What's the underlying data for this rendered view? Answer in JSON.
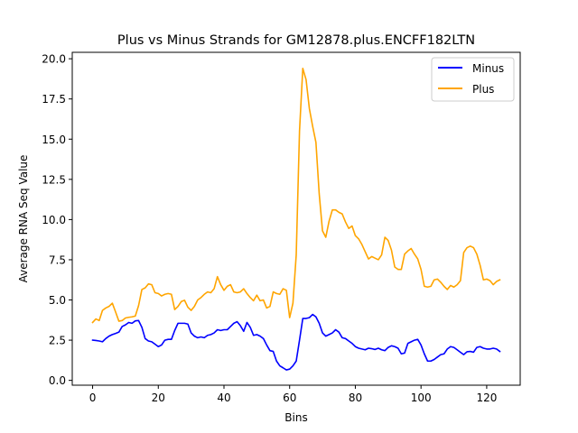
{
  "chart_data": {
    "type": "line",
    "title": "Plus vs Minus Strands for GM12878.plus.ENCFF182LTN",
    "xlabel": "Bins",
    "ylabel": "Average RNA Seq Value",
    "xlim": [
      -6.2,
      130.2
    ],
    "ylim": [
      -0.3,
      20.4
    ],
    "xticks": [
      0,
      20,
      40,
      60,
      80,
      100,
      120
    ],
    "yticks": [
      0.0,
      2.5,
      5.0,
      7.5,
      10.0,
      12.5,
      15.0,
      17.5,
      20.0
    ],
    "xtick_labels": [
      "0",
      "20",
      "40",
      "60",
      "80",
      "100",
      "120"
    ],
    "ytick_labels": [
      "0.0",
      "2.5",
      "5.0",
      "7.5",
      "10.0",
      "12.5",
      "15.0",
      "17.5",
      "20.0"
    ],
    "grid": false,
    "legend_position": "top-right",
    "series": [
      {
        "name": "Minus",
        "color": "#0000ff",
        "values": [
          2.5,
          2.48,
          2.45,
          2.4,
          2.6,
          2.75,
          2.85,
          2.92,
          3.0,
          3.35,
          3.45,
          3.6,
          3.55,
          3.7,
          3.72,
          3.3,
          2.6,
          2.45,
          2.4,
          2.25,
          2.1,
          2.2,
          2.5,
          2.55,
          2.55,
          3.1,
          3.55,
          3.55,
          3.55,
          3.5,
          2.95,
          2.75,
          2.65,
          2.7,
          2.65,
          2.8,
          2.85,
          2.95,
          3.15,
          3.1,
          3.15,
          3.15,
          3.35,
          3.55,
          3.65,
          3.4,
          3.05,
          3.6,
          3.3,
          2.8,
          2.85,
          2.75,
          2.6,
          2.2,
          1.85,
          1.8,
          1.2,
          0.9,
          0.78,
          0.65,
          0.7,
          0.9,
          1.2,
          2.5,
          3.85,
          3.85,
          3.9,
          4.1,
          3.95,
          3.55,
          2.95,
          2.75,
          2.85,
          2.95,
          3.15,
          3.0,
          2.65,
          2.6,
          2.45,
          2.3,
          2.1,
          2.0,
          1.95,
          1.9,
          2.0,
          1.97,
          1.92,
          2.0,
          1.9,
          1.85,
          2.05,
          2.15,
          2.1,
          2.0,
          1.65,
          1.7,
          2.3,
          2.4,
          2.5,
          2.55,
          2.2,
          1.65,
          1.2,
          1.2,
          1.3,
          1.45,
          1.6,
          1.65,
          1.95,
          2.1,
          2.05,
          1.9,
          1.75,
          1.6,
          1.78,
          1.8,
          1.75,
          2.05,
          2.1,
          2.0,
          1.95,
          1.95,
          2.0,
          1.95,
          1.8
        ]
      },
      {
        "name": "Plus",
        "color": "#ffa500",
        "values": [
          3.6,
          3.82,
          3.72,
          4.35,
          4.5,
          4.6,
          4.8,
          4.25,
          3.68,
          3.72,
          3.88,
          3.92,
          3.95,
          4.0,
          4.65,
          5.65,
          5.75,
          6.0,
          5.95,
          5.45,
          5.4,
          5.25,
          5.35,
          5.4,
          5.35,
          4.4,
          4.6,
          4.9,
          4.98,
          4.55,
          4.35,
          4.6,
          5.0,
          5.15,
          5.35,
          5.5,
          5.45,
          5.7,
          6.45,
          5.95,
          5.6,
          5.85,
          5.95,
          5.5,
          5.45,
          5.5,
          5.7,
          5.4,
          5.15,
          4.95,
          5.3,
          4.95,
          5.0,
          4.5,
          4.6,
          5.5,
          5.4,
          5.35,
          5.7,
          5.6,
          3.9,
          4.8,
          7.8,
          15.5,
          19.4,
          18.7,
          16.9,
          15.8,
          14.8,
          11.6,
          9.3,
          8.9,
          9.9,
          10.6,
          10.6,
          10.45,
          10.35,
          9.85,
          9.45,
          9.6,
          9.0,
          8.8,
          8.45,
          8.0,
          7.55,
          7.7,
          7.6,
          7.5,
          7.8,
          8.9,
          8.7,
          8.1,
          7.05,
          6.9,
          6.9,
          7.85,
          8.05,
          8.2,
          7.85,
          7.55,
          6.9,
          5.85,
          5.8,
          5.85,
          6.25,
          6.3,
          6.1,
          5.85,
          5.65,
          5.9,
          5.8,
          5.95,
          6.2,
          7.95,
          8.25,
          8.35,
          8.25,
          7.85,
          7.15,
          6.25,
          6.3,
          6.2,
          5.95,
          6.15,
          6.25
        ]
      }
    ]
  }
}
